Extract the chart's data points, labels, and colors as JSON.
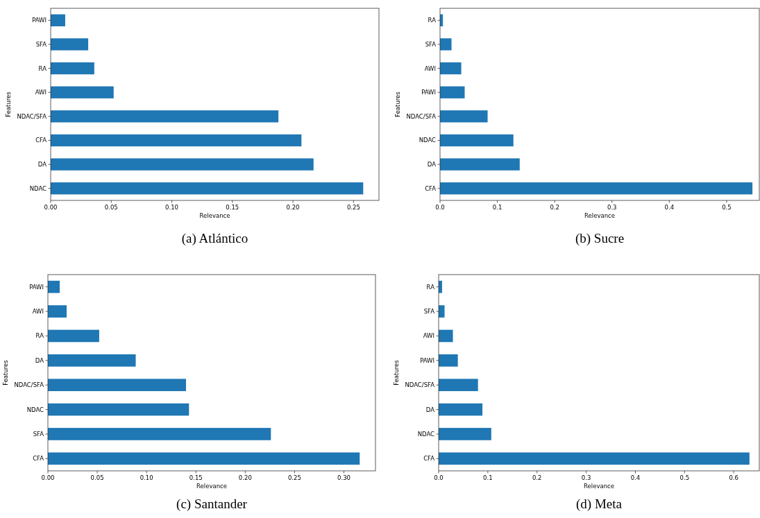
{
  "chart_data": [
    {
      "type": "bar",
      "orientation": "horizontal",
      "title": "(a)  Atlántico",
      "xlabel": "Relevance",
      "ylabel": "Features",
      "categories": [
        "PAWI",
        "SFA",
        "RA",
        "AWI",
        "NDAC/SFA",
        "CFA",
        "DA",
        "NDAC"
      ],
      "values": [
        0.012,
        0.031,
        0.036,
        0.052,
        0.188,
        0.207,
        0.217,
        0.258
      ],
      "color": "#1f77b4",
      "xlim": [
        0,
        0.271
      ],
      "xticks": [
        {
          "value": 0,
          "label": "0.00"
        },
        {
          "value": 0.05,
          "label": "0.05"
        },
        {
          "value": 0.1,
          "label": "0.10"
        },
        {
          "value": 0.15,
          "label": "0.15"
        },
        {
          "value": 0.2,
          "label": "0.20"
        },
        {
          "value": 0.25,
          "label": "0.25"
        }
      ],
      "grid": false
    },
    {
      "type": "bar",
      "orientation": "horizontal",
      "title": "(b)  Sucre",
      "xlabel": "Relevance",
      "ylabel": "Features",
      "categories": [
        "RA",
        "SFA",
        "AWI",
        "PAWI",
        "NDAC/SFA",
        "NDAC",
        "DA",
        "CFA"
      ],
      "values": [
        0.005,
        0.02,
        0.037,
        0.043,
        0.083,
        0.128,
        0.139,
        0.545
      ],
      "color": "#1f77b4",
      "xlim": [
        0,
        0.557
      ],
      "xticks": [
        {
          "value": 0,
          "label": "0.0"
        },
        0.1,
        0.2,
        0.3,
        0.4,
        0.5
      ],
      "grid": false
    },
    {
      "type": "bar",
      "orientation": "horizontal",
      "title": "(c)  Santander",
      "xlabel": "Relevance",
      "ylabel": "Features",
      "categories": [
        "PAWI",
        "AWI",
        "RA",
        "DA",
        "NDAC/SFA",
        "NDAC",
        "SFA",
        "CFA"
      ],
      "values": [
        0.012,
        0.019,
        0.052,
        0.089,
        0.14,
        0.143,
        0.226,
        0.316
      ],
      "color": "#1f77b4",
      "xlim": [
        0,
        0.332
      ],
      "xticks": [
        {
          "value": 0,
          "label": "0.00"
        },
        {
          "value": 0.05,
          "label": "0.05"
        },
        {
          "value": 0.1,
          "label": "0.10"
        },
        {
          "value": 0.15,
          "label": "0.15"
        },
        {
          "value": 0.2,
          "label": "0.20"
        },
        {
          "value": 0.25,
          "label": "0.25"
        },
        {
          "value": 0.3,
          "label": "0.30"
        }
      ],
      "grid": false
    },
    {
      "type": "bar",
      "orientation": "horizontal",
      "title": "(d)  Meta",
      "xlabel": "Relevance",
      "ylabel": "Features",
      "categories": [
        "RA",
        "SFA",
        "AWI",
        "PAWI",
        "NDAC/SFA",
        "DA",
        "NDAC",
        "CFA"
      ],
      "values": [
        0.007,
        0.012,
        0.029,
        0.039,
        0.08,
        0.089,
        0.107,
        0.632
      ],
      "color": "#1f77b4",
      "xlim": [
        0,
        0.652
      ],
      "xticks": [
        {
          "value": 0,
          "label": "0.0"
        },
        0.1,
        0.2,
        0.3,
        0.4,
        0.5,
        0.6
      ],
      "grid": false
    }
  ]
}
